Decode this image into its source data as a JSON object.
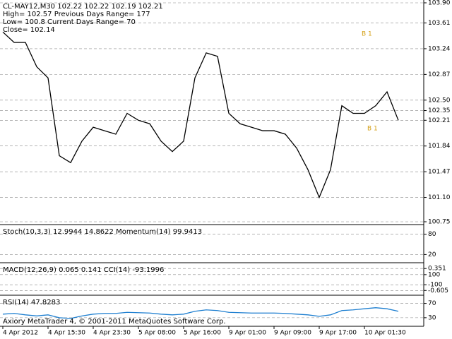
{
  "chart_data": [
    {
      "type": "line",
      "header": [
        "CL-MAY12,M30  102.22 102.22 102.19 102.21",
        "High= 102.57   Previous Days Range= 177",
        "Low= 100.8   Current Days Range= 70",
        "Close= 102.14"
      ],
      "annotations": [
        "B 1",
        "B 1"
      ],
      "categories": [
        "4 Apr 2012",
        null,
        null,
        null,
        "4 Apr 15:30",
        null,
        null,
        null,
        "4 Apr 23:30",
        null,
        null,
        null,
        "5 Apr 08:00",
        null,
        null,
        null,
        "5 Apr 16:00",
        null,
        null,
        null,
        "9 Apr 01:00",
        null,
        null,
        null,
        "9 Apr 09:00",
        null,
        null,
        null,
        "9 Apr 17:00",
        null,
        null,
        null,
        "10 Apr 01:30",
        null,
        null,
        null
      ],
      "values": [
        103.48,
        103.33,
        103.33,
        102.98,
        102.82,
        101.7,
        101.6,
        101.91,
        102.11,
        102.06,
        102.01,
        102.31,
        102.21,
        102.16,
        101.91,
        101.76,
        101.91,
        102.82,
        103.18,
        103.13,
        102.31,
        102.16,
        102.11,
        102.06,
        102.06,
        102.01,
        101.81,
        101.5,
        101.1,
        101.5,
        102.42,
        102.31,
        102.31,
        102.42,
        102.62,
        102.21
      ],
      "color": "#000000",
      "ylim": [
        100.75,
        103.9
      ],
      "yticks": [
        {
          "value": 103.9,
          "label": "103.90"
        },
        103.61,
        103.24,
        102.87,
        {
          "value": 102.5,
          "label": "102.50"
        },
        102.35,
        102.21,
        101.84,
        101.47,
        {
          "value": 101.1,
          "label": "101.10"
        },
        100.75
      ],
      "grid": true
    },
    {
      "type": "indicator",
      "title": "Stoch(10,3,3) 12.9944 14.8622  Momentum(14) 99.9413",
      "ylim": [
        0,
        100
      ],
      "yticks": [
        20,
        80
      ]
    },
    {
      "type": "indicator",
      "title": "MACD(12,26,9) 0.065 0.141  CCI(14) -93.1996",
      "ylim": [
        -0.75,
        0.48
      ],
      "yticks": [
        0.351,
        -0.605
      ],
      "y2lim": [
        -280,
        280
      ],
      "y2ticks": [
        100,
        -100
      ]
    },
    {
      "type": "line",
      "title": "RSI(14) 47.8283",
      "ylim": [
        10,
        85
      ],
      "yticks": [
        30,
        70
      ],
      "color": "#1e7fd0",
      "values": [
        40,
        42,
        38,
        35,
        38,
        30,
        28,
        35,
        40,
        42,
        42,
        45,
        44,
        43,
        40,
        38,
        40,
        48,
        52,
        50,
        45,
        44,
        43,
        43,
        43,
        42,
        40,
        38,
        34,
        38,
        50,
        52,
        55,
        58,
        55,
        48
      ]
    }
  ],
  "footer": "Axiory MetaTrader 4, © 2001-2011 MetaQuotes Software Corp."
}
